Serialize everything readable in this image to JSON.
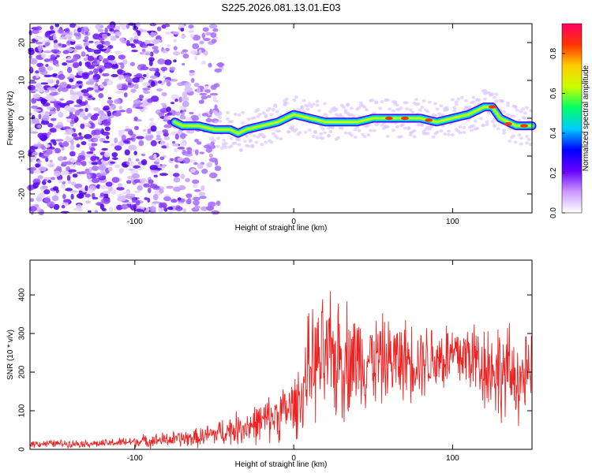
{
  "title": "S225.2026.081.13.01.E03",
  "chart_data": [
    {
      "type": "heatmap",
      "xlabel": "Height of straight line (km)",
      "ylabel": "Frequency (Hz)",
      "xlim": [
        -166,
        150
      ],
      "ylim": [
        -25,
        25
      ],
      "xticks": [
        -100,
        0,
        100
      ],
      "yticks": [
        -20,
        -10,
        0,
        10,
        20
      ],
      "colorbar": {
        "label": "Normalized spectral amplitude",
        "range": [
          0.0,
          0.95
        ],
        "ticks": [
          0.0,
          0.2,
          0.4,
          0.6,
          0.8
        ],
        "colors": [
          "#ffffff",
          "#cc99ff",
          "#6600ff",
          "#0000ff",
          "#00ccff",
          "#00ff66",
          "#ccff00",
          "#ffcc00",
          "#ff3300",
          "#ff0066"
        ]
      },
      "ridge": {
        "x": [
          -75,
          -70,
          -60,
          -50,
          -45,
          -40,
          -35,
          -30,
          -20,
          -10,
          -5,
          0,
          10,
          20,
          30,
          40,
          50,
          60,
          70,
          80,
          90,
          100,
          110,
          115,
          120,
          125,
          130,
          135,
          140,
          145,
          150
        ],
        "y": [
          -1,
          -2,
          -2,
          -3,
          -3,
          -3,
          -4,
          -3,
          -2,
          -1,
          0,
          1,
          0,
          -1,
          -1,
          -1,
          0,
          0,
          0,
          0,
          -1,
          0,
          1,
          2,
          3,
          3,
          0,
          -1,
          -2,
          -2,
          -2
        ]
      }
    },
    {
      "type": "line",
      "xlabel": "Height of straight line (km)",
      "ylabel": "SNR (10 * v/v)",
      "xlim": [
        -166,
        150
      ],
      "ylim": [
        0,
        490
      ],
      "xticks": [
        -100,
        0,
        100
      ],
      "yticks": [
        0,
        100,
        200,
        300,
        400
      ],
      "color": "#ee2222",
      "envelope": {
        "x": [
          -166,
          -120,
          -100,
          -80,
          -60,
          -40,
          -20,
          0,
          5,
          10,
          20,
          30,
          40,
          60,
          80,
          100,
          110,
          120,
          130,
          140,
          150
        ],
        "mean": [
          15,
          15,
          20,
          25,
          30,
          50,
          70,
          110,
          140,
          220,
          230,
          240,
          235,
          230,
          235,
          240,
          245,
          220,
          200,
          190,
          180
        ],
        "spread": [
          10,
          10,
          15,
          20,
          25,
          40,
          55,
          80,
          100,
          140,
          160,
          170,
          130,
          110,
          100,
          100,
          100,
          120,
          130,
          120,
          110
        ]
      }
    }
  ]
}
